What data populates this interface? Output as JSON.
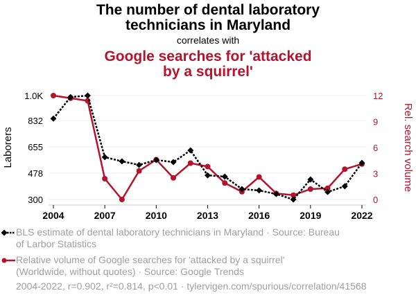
{
  "header": {
    "title": "The number of dental laboratory technicians in Maryland",
    "title_line1": "The number of dental laboratory",
    "title_line2": "technicians in Maryland",
    "connector": "correlates with",
    "title2_line1": "Google searches for 'attacked",
    "title2_line2": "by a squirrel'"
  },
  "legend": {
    "series1_line1": "BLS estimate of dental laboratory technicians in Maryland · Source: Bureau",
    "series1_line2": "of Larbor Statistics",
    "series2_line1": "Relative volume of Google searches for 'attacked by a squirrel'",
    "series2_line2": "(Worldwide, without quotes) · Source: Google Trends"
  },
  "footer": {
    "stats": "2004-2022, r=0.902, r²=0.814, p<0.01 · tylervigen.com/spurious/correlation/41568"
  },
  "colors": {
    "series1": "#000000",
    "series2": "#b5132b",
    "grid": "#eeeeee"
  },
  "chart_data": {
    "type": "line",
    "title": "The number of dental laboratory technicians in Maryland correlates with Google searches for 'attacked by a squirrel'",
    "x": [
      2004,
      2005,
      2006,
      2007,
      2008,
      2009,
      2010,
      2011,
      2012,
      2013,
      2014,
      2015,
      2016,
      2017,
      2018,
      2019,
      2020,
      2021,
      2022
    ],
    "xlabel": "",
    "x_ticks": [
      "2004",
      "2007",
      "2010",
      "2013",
      "2016",
      "2019",
      "2022"
    ],
    "x_tick_values": [
      2004,
      2007,
      2010,
      2013,
      2016,
      2019,
      2022
    ],
    "xlim": [
      2004,
      2022
    ],
    "grid": true,
    "legend_position": "bottom",
    "series": [
      {
        "name": "BLS estimate of dental laboratory technicians in Maryland",
        "axis": "left",
        "style": "dotted-diamond",
        "values": [
          845,
          990,
          1000,
          585,
          557,
          533,
          566,
          552,
          631,
          463,
          454,
          370,
          361,
          337,
          300,
          435,
          351,
          389,
          547
        ]
      },
      {
        "name": "Relative volume of Google searches for 'attacked by a squirrel'",
        "axis": "right",
        "style": "solid-circle",
        "values": [
          12,
          11.7,
          11.4,
          2.4,
          0,
          3.3,
          4.6,
          2.5,
          4.2,
          3.8,
          1.9,
          0.9,
          2.6,
          0.7,
          0.5,
          1.2,
          1.3,
          3.5,
          4.1
        ]
      }
    ],
    "y_left": {
      "label": "Laborers",
      "ylim": [
        300,
        1000
      ],
      "ticks": [
        "300",
        "478",
        "655",
        "832",
        "1.0K"
      ],
      "tick_values": [
        300,
        478,
        655,
        832,
        1000
      ]
    },
    "y_right": {
      "label": "Rel. search volume",
      "ylim": [
        0,
        12
      ],
      "ticks": [
        "0",
        "3",
        "6",
        "9",
        "12"
      ],
      "tick_values": [
        0,
        3,
        6,
        9,
        12
      ]
    }
  }
}
